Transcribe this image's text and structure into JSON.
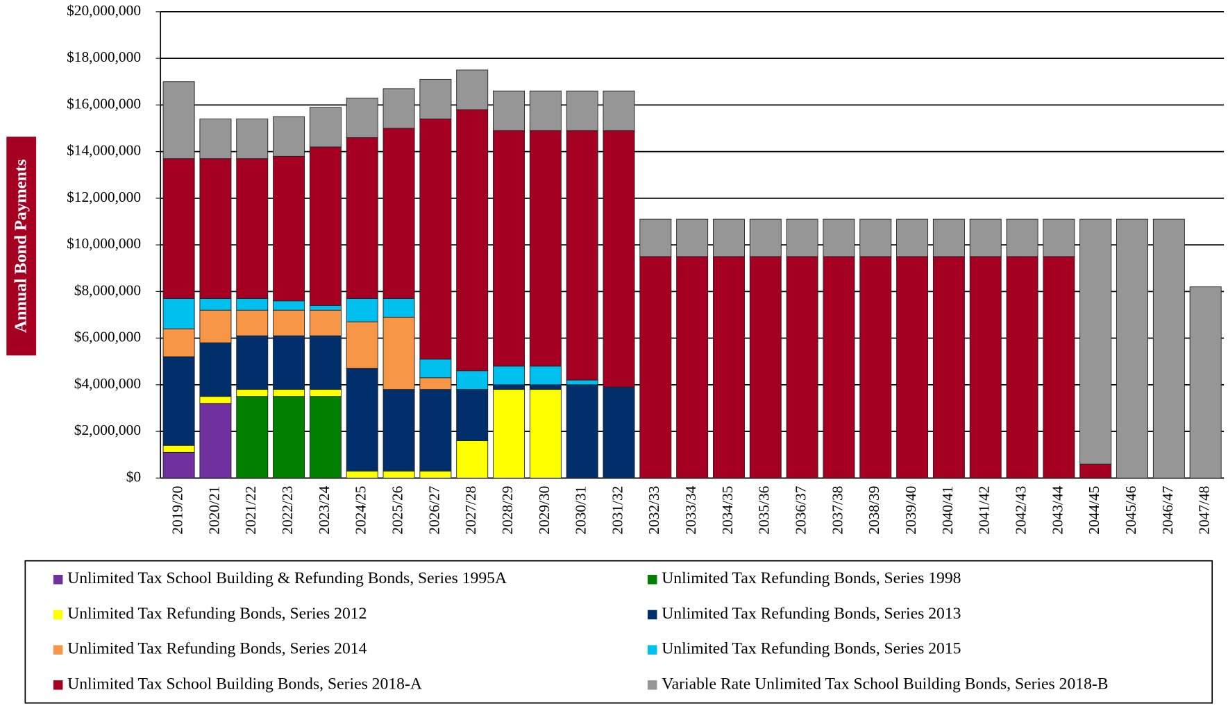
{
  "chart_data": {
    "type": "stacked-bar",
    "y_label": "Annual Bond Payments",
    "categories": [
      "2019/20",
      "2020/21",
      "2021/22",
      "2022/23",
      "2023/24",
      "2024/25",
      "2025/26",
      "2026/27",
      "2027/28",
      "2028/29",
      "2029/30",
      "2030/31",
      "2031/32",
      "2032/33",
      "2033/34",
      "2034/35",
      "2035/36",
      "2036/37",
      "2037/38",
      "2038/39",
      "2039/40",
      "2040/41",
      "2041/42",
      "2042/43",
      "2043/44",
      "2044/45",
      "2045/46",
      "2046/47",
      "2047/48"
    ],
    "series": [
      {
        "name": "Unlimited Tax School Building & Refunding Bonds, Series 1995A",
        "color": "#7030a0",
        "values": [
          1100000,
          3200000,
          0,
          0,
          0,
          0,
          0,
          0,
          0,
          0,
          0,
          0,
          0,
          0,
          0,
          0,
          0,
          0,
          0,
          0,
          0,
          0,
          0,
          0,
          0,
          0,
          0,
          0,
          0
        ]
      },
      {
        "name": "Unlimited Tax Refunding Bonds, Series 1998",
        "color": "#008000",
        "values": [
          0,
          0,
          3500000,
          3500000,
          3500000,
          0,
          0,
          0,
          0,
          0,
          0,
          0,
          0,
          0,
          0,
          0,
          0,
          0,
          0,
          0,
          0,
          0,
          0,
          0,
          0,
          0,
          0,
          0,
          0
        ]
      },
      {
        "name": "Unlimited Tax Refunding Bonds, Series 2012",
        "color": "#ffff00",
        "values": [
          300000,
          300000,
          300000,
          300000,
          300000,
          300000,
          300000,
          300000,
          1600000,
          3800000,
          3800000,
          0,
          0,
          0,
          0,
          0,
          0,
          0,
          0,
          0,
          0,
          0,
          0,
          0,
          0,
          0,
          0,
          0,
          0
        ]
      },
      {
        "name": "Unlimited Tax Refunding Bonds, Series 2013",
        "color": "#002f6c",
        "values": [
          3800000,
          2300000,
          2300000,
          2300000,
          2300000,
          4400000,
          3500000,
          3500000,
          2200000,
          200000,
          200000,
          4000000,
          3900000,
          0,
          0,
          0,
          0,
          0,
          0,
          0,
          0,
          0,
          0,
          0,
          0,
          0,
          0,
          0,
          0
        ]
      },
      {
        "name": "Unlimited Tax Refunding Bonds, Series 2014",
        "color": "#f79646",
        "values": [
          1200000,
          1400000,
          1100000,
          1100000,
          1100000,
          2000000,
          3100000,
          500000,
          0,
          0,
          0,
          0,
          0,
          0,
          0,
          0,
          0,
          0,
          0,
          0,
          0,
          0,
          0,
          0,
          0,
          0,
          0,
          0,
          0
        ]
      },
      {
        "name": "Unlimited Tax Refunding Bonds, Series 2015",
        "color": "#00c0f0",
        "values": [
          1300000,
          500000,
          500000,
          400000,
          200000,
          1000000,
          800000,
          800000,
          800000,
          800000,
          800000,
          200000,
          0,
          0,
          0,
          0,
          0,
          0,
          0,
          0,
          0,
          0,
          0,
          0,
          0,
          0,
          0,
          0,
          0
        ]
      },
      {
        "name": "Unlimited Tax School Building Bonds, Series 2018-A",
        "color": "#a50021",
        "values": [
          6000000,
          6000000,
          6000000,
          6200000,
          6800000,
          6900000,
          7300000,
          10300000,
          11200000,
          10100000,
          10100000,
          10700000,
          11000000,
          9500000,
          9500000,
          9500000,
          9500000,
          9500000,
          9500000,
          9500000,
          9500000,
          9500000,
          9500000,
          9500000,
          9500000,
          600000,
          0,
          0,
          0
        ]
      },
      {
        "name": "Variable Rate Unlimited Tax School Building Bonds, Series 2018-B",
        "color": "#969696",
        "values": [
          3300000,
          1700000,
          1700000,
          1700000,
          1700000,
          1700000,
          1700000,
          1700000,
          1700000,
          1700000,
          1700000,
          1700000,
          1700000,
          1600000,
          1600000,
          1600000,
          1600000,
          1600000,
          1600000,
          1600000,
          1600000,
          1600000,
          1600000,
          1600000,
          1600000,
          10500000,
          11100000,
          11100000,
          8200000
        ]
      }
    ],
    "ylim": [
      0,
      20000000
    ],
    "yticks": [
      {
        "value": 0,
        "label": "$0"
      },
      {
        "value": 2000000,
        "label": "$2,000,000"
      },
      {
        "value": 4000000,
        "label": "$4,000,000"
      },
      {
        "value": 6000000,
        "label": "$6,000,000"
      },
      {
        "value": 8000000,
        "label": "$8,000,000"
      },
      {
        "value": 10000000,
        "label": "$10,000,000"
      },
      {
        "value": 12000000,
        "label": "$12,000,000"
      },
      {
        "value": 14000000,
        "label": "$14,000,000"
      },
      {
        "value": 16000000,
        "label": "$16,000,000"
      },
      {
        "value": 18000000,
        "label": "$18,000,000"
      },
      {
        "value": 20000000,
        "label": "$20,000,000"
      }
    ],
    "grid": true
  }
}
